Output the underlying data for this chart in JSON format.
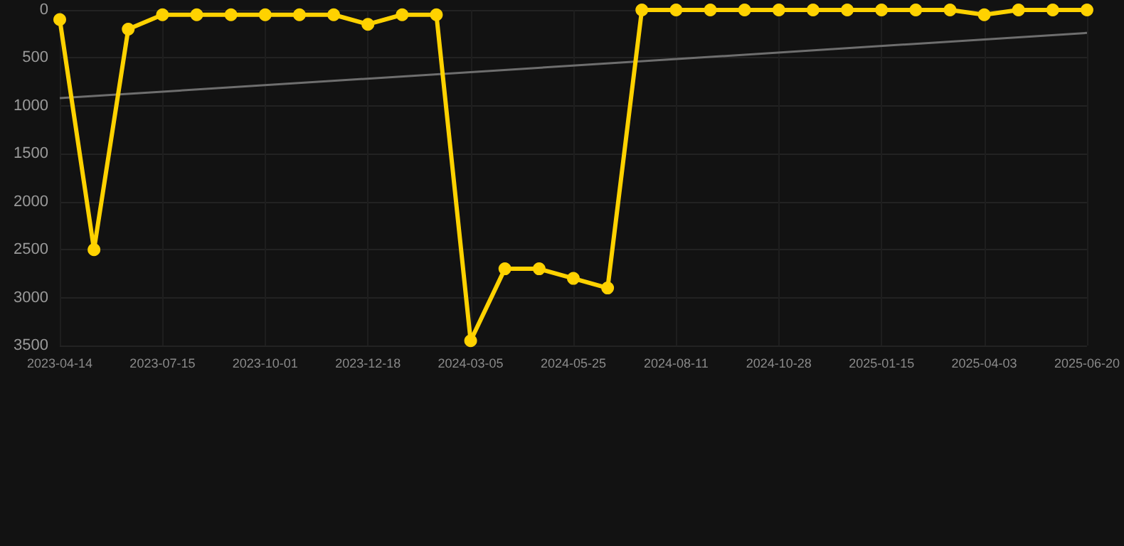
{
  "chart_data": {
    "type": "line",
    "categories": [
      "2023-04-14",
      null,
      null,
      "2023-07-15",
      null,
      null,
      "2023-10-01",
      null,
      null,
      "2023-12-18",
      null,
      null,
      "2024-03-05",
      null,
      null,
      "2024-05-25",
      null,
      null,
      "2024-08-11",
      null,
      null,
      "2024-10-28",
      null,
      null,
      "2025-01-15",
      null,
      null,
      "2025-04-03",
      null,
      null,
      "2025-06-20"
    ],
    "series": [
      {
        "color": "#ffd200",
        "values": [
          100,
          2500,
          200,
          50,
          50,
          50,
          50,
          50,
          50,
          150,
          50,
          50,
          3450,
          2700,
          2700,
          2800,
          2900,
          0,
          0,
          0,
          0,
          0,
          0,
          0,
          0,
          0,
          0,
          50,
          0,
          0,
          0
        ]
      },
      {
        "color": "#6e6e6e",
        "marker": "none",
        "values": [
          920,
          null,
          null,
          null,
          null,
          null,
          null,
          null,
          null,
          null,
          null,
          null,
          null,
          null,
          null,
          null,
          null,
          null,
          null,
          null,
          null,
          null,
          null,
          null,
          null,
          null,
          null,
          null,
          null,
          null,
          240
        ]
      }
    ],
    "ylim": [
      3500,
      0
    ],
    "yticks": [
      0,
      500,
      1000,
      1500,
      2000,
      2500,
      3000,
      3500
    ],
    "grid": true,
    "marker": "circle"
  }
}
